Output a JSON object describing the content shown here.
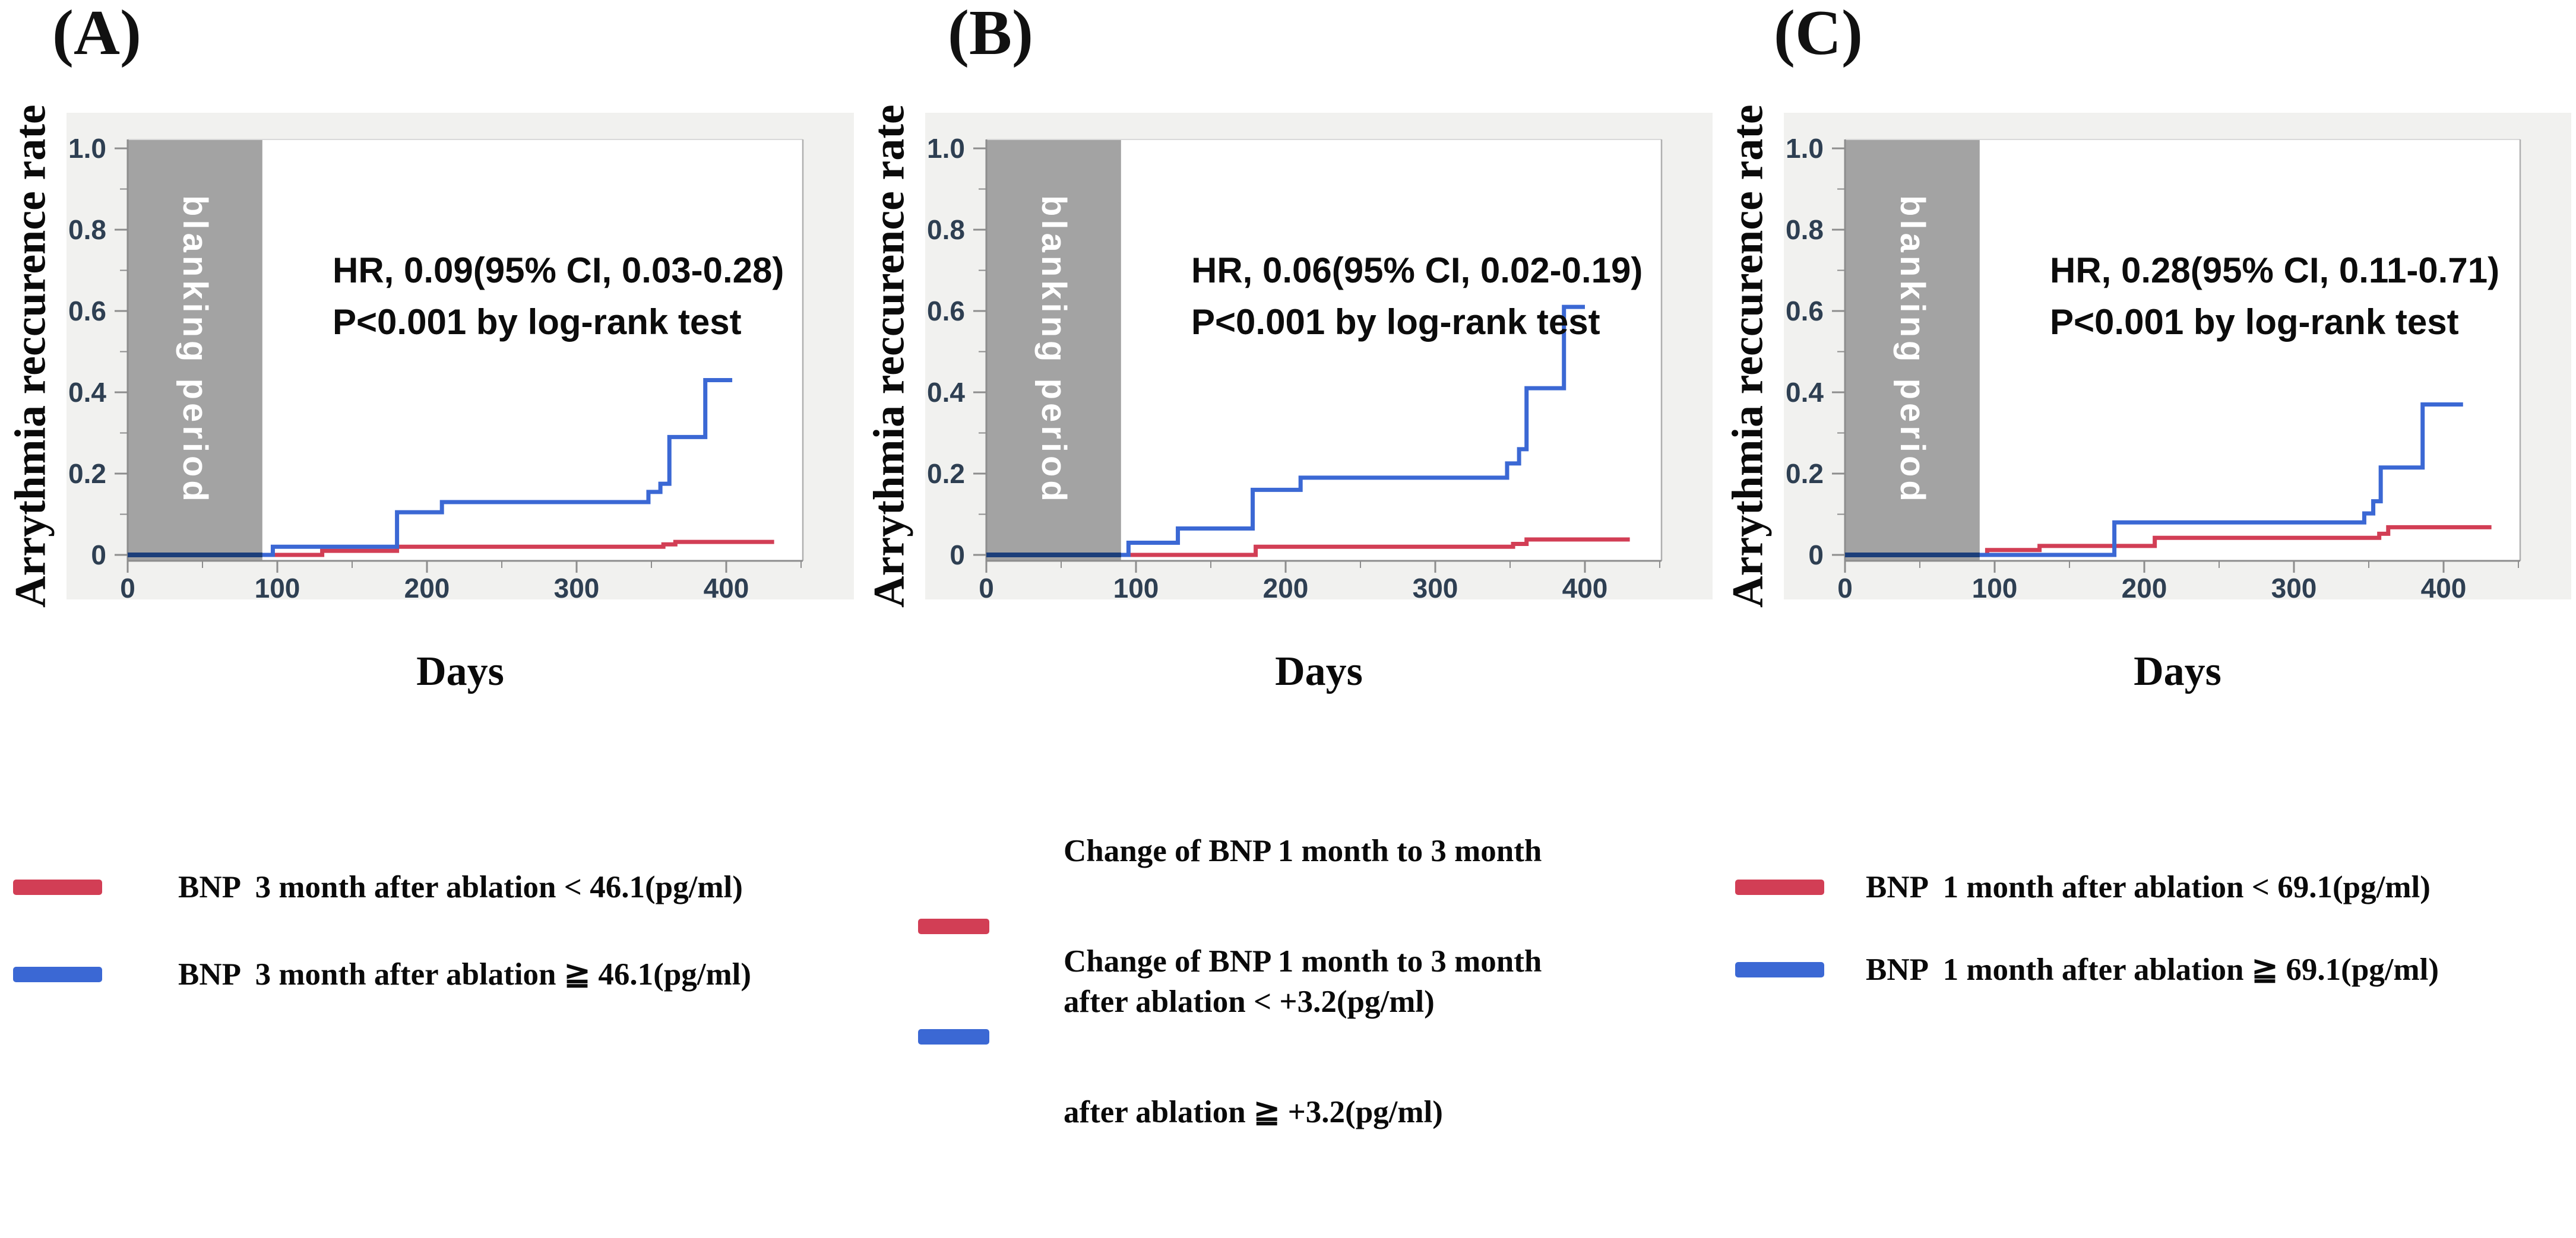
{
  "colors": {
    "red": "#d23e55",
    "blue": "#3b68d4",
    "navy_overlay": "#1c3f7a",
    "blanking": "#a3a3a3",
    "frame_bg": "#f1f1ef",
    "axis": "#8d8d8d",
    "plot_border": "#b0b0b0",
    "plot_top_border": "#d9d9d9",
    "tick_label": "#2e3f52"
  },
  "panels": [
    {
      "letter": "(A)"
    },
    {
      "letter": "(B)"
    },
    {
      "letter": "(C)"
    }
  ],
  "chart_data": [
    {
      "type": "line",
      "panel": "A",
      "xlabel": "Days",
      "ylabel": "Arrythmia reccurence rate",
      "annotation_line1": "HR, 0.09(95% CI, 0.03-0.28)",
      "annotation_line2": "P<0.001 by log-rank test",
      "blanking_label": "blanking period",
      "blanking_period_days": [
        0,
        90
      ],
      "xlim": [
        0,
        455
      ],
      "ylim": [
        0,
        1.0
      ],
      "xticks": [
        0,
        100,
        200,
        300,
        400
      ],
      "xticks_minor": [
        50,
        150,
        250,
        350,
        450
      ],
      "yticks": [
        "0",
        "0.2",
        "0.4",
        "0.6",
        "0.8",
        "1.0"
      ],
      "yticks_minor": [
        0.1,
        0.3,
        0.5,
        0.7,
        0.9
      ],
      "legend_position": "below",
      "grid": false,
      "series": [
        {
          "name": "bnp-3month-below-cutoff",
          "color_key": "red",
          "label_line1": "BNP  3 month after ablation < 46.1(pg/ml)",
          "label_line2": "",
          "steps": [
            [
              0,
              0
            ],
            [
              130,
              0
            ],
            [
              130,
              0.01
            ],
            [
              180,
              0.01
            ],
            [
              180,
              0.02
            ],
            [
              358,
              0.02
            ],
            [
              358,
              0.026
            ],
            [
              366,
              0.026
            ],
            [
              366,
              0.032
            ],
            [
              432,
              0.032
            ]
          ]
        },
        {
          "name": "bnp-3month-above-cutoff",
          "color_key": "blue",
          "label_line1": "BNP  3 month after ablation ≧ 46.1(pg/ml)",
          "label_line2": "",
          "steps": [
            [
              0,
              0
            ],
            [
              97,
              0
            ],
            [
              97,
              0.02
            ],
            [
              180,
              0.02
            ],
            [
              180,
              0.105
            ],
            [
              210,
              0.105
            ],
            [
              210,
              0.13
            ],
            [
              348,
              0.13
            ],
            [
              348,
              0.155
            ],
            [
              356,
              0.155
            ],
            [
              356,
              0.175
            ],
            [
              362,
              0.175
            ],
            [
              362,
              0.29
            ],
            [
              386,
              0.29
            ],
            [
              386,
              0.43
            ],
            [
              404,
              0.43
            ]
          ]
        }
      ]
    },
    {
      "type": "line",
      "panel": "B",
      "xlabel": "Days",
      "ylabel": "Arrythmia reccurence rate",
      "annotation_line1": "HR, 0.06(95% CI, 0.02-0.19)",
      "annotation_line2": "P<0.001 by log-rank test",
      "blanking_label": "blanking period",
      "blanking_period_days": [
        0,
        90
      ],
      "xlim": [
        0,
        455
      ],
      "ylim": [
        0,
        1.0
      ],
      "xticks": [
        0,
        100,
        200,
        300,
        400
      ],
      "xticks_minor": [
        50,
        150,
        250,
        350,
        450
      ],
      "yticks": [
        "0",
        "0.2",
        "0.4",
        "0.6",
        "0.8",
        "1.0"
      ],
      "yticks_minor": [
        0.1,
        0.3,
        0.5,
        0.7,
        0.9
      ],
      "legend_position": "below",
      "grid": false,
      "series": [
        {
          "name": "bnp-change-below-cutoff",
          "color_key": "red",
          "label_line1": "Change of BNP 1 month to 3 month",
          "label_line2": "after ablation < +3.2(pg/ml)",
          "steps": [
            [
              0,
              0
            ],
            [
              180,
              0
            ],
            [
              180,
              0.02
            ],
            [
              352,
              0.02
            ],
            [
              352,
              0.027
            ],
            [
              361,
              0.027
            ],
            [
              361,
              0.038
            ],
            [
              430,
              0.038
            ]
          ]
        },
        {
          "name": "bnp-change-above-cutoff",
          "color_key": "blue",
          "label_line1": "Change of BNP 1 month to 3 month",
          "label_line2": "after ablation ≧ +3.2(pg/ml)",
          "steps": [
            [
              0,
              0
            ],
            [
              95,
              0
            ],
            [
              95,
              0.03
            ],
            [
              128,
              0.03
            ],
            [
              128,
              0.065
            ],
            [
              178,
              0.065
            ],
            [
              178,
              0.16
            ],
            [
              210,
              0.16
            ],
            [
              210,
              0.19
            ],
            [
              348,
              0.19
            ],
            [
              348,
              0.225
            ],
            [
              356,
              0.225
            ],
            [
              356,
              0.26
            ],
            [
              361,
              0.26
            ],
            [
              361,
              0.41
            ],
            [
              386,
              0.41
            ],
            [
              386,
              0.61
            ],
            [
              400,
              0.61
            ]
          ]
        }
      ]
    },
    {
      "type": "line",
      "panel": "C",
      "xlabel": "Days",
      "ylabel": "Arrythmia reccurence rate",
      "annotation_line1": "HR, 0.28(95% CI, 0.11-0.71)",
      "annotation_line2": "P<0.001 by log-rank test",
      "blanking_label": "blanking period",
      "blanking_period_days": [
        0,
        90
      ],
      "xlim": [
        0,
        455
      ],
      "ylim": [
        0,
        1.0
      ],
      "xticks": [
        0,
        100,
        200,
        300,
        400
      ],
      "xticks_minor": [
        50,
        150,
        250,
        350,
        450
      ],
      "yticks": [
        "0",
        "0.2",
        "0.4",
        "0.6",
        "0.8",
        "1.0"
      ],
      "yticks_minor": [
        0.1,
        0.3,
        0.5,
        0.7,
        0.9
      ],
      "legend_position": "below",
      "grid": false,
      "series": [
        {
          "name": "bnp-1month-below-cutoff",
          "color_key": "red",
          "label_line1": "BNP  1 month after ablation < 69.1(pg/ml)",
          "label_line2": "",
          "steps": [
            [
              0,
              0
            ],
            [
              95,
              0
            ],
            [
              95,
              0.012
            ],
            [
              130,
              0.012
            ],
            [
              130,
              0.022
            ],
            [
              207,
              0.022
            ],
            [
              207,
              0.042
            ],
            [
              357,
              0.042
            ],
            [
              357,
              0.052
            ],
            [
              363,
              0.052
            ],
            [
              363,
              0.068
            ],
            [
              432,
              0.068
            ]
          ]
        },
        {
          "name": "bnp-1month-above-cutoff",
          "color_key": "blue",
          "label_line1": "BNP  1 month after ablation ≧ 69.1(pg/ml)",
          "label_line2": "",
          "steps": [
            [
              0,
              0
            ],
            [
              180,
              0
            ],
            [
              180,
              0.08
            ],
            [
              347,
              0.08
            ],
            [
              347,
              0.102
            ],
            [
              353,
              0.102
            ],
            [
              353,
              0.132
            ],
            [
              358,
              0.132
            ],
            [
              358,
              0.215
            ],
            [
              386,
              0.215
            ],
            [
              386,
              0.37
            ],
            [
              413,
              0.37
            ]
          ]
        }
      ]
    }
  ]
}
